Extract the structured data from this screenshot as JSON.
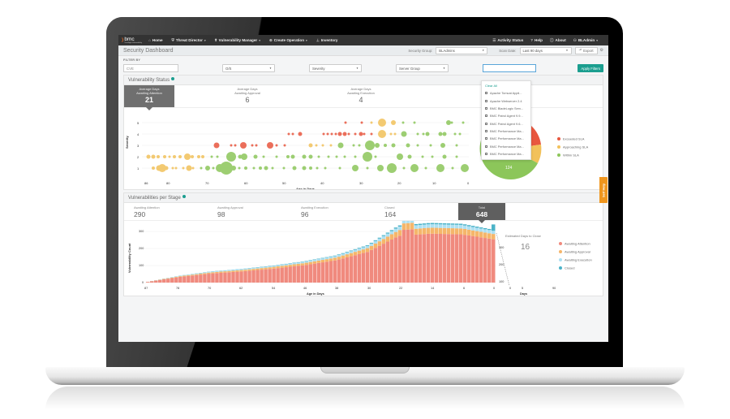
{
  "nav": {
    "logo": "bmc",
    "logo_sub": "TrueSight Vulnerability",
    "items": [
      {
        "label": "Home",
        "icon": "home-icon"
      },
      {
        "label": "Threat Director",
        "icon": "shield-icon",
        "dropdown": true
      },
      {
        "label": "Vulnerability Manager",
        "icon": "bug-icon",
        "dropdown": true
      },
      {
        "label": "Create Operation",
        "icon": "plus-circle-icon",
        "dropdown": true
      },
      {
        "label": "Inventory",
        "icon": "inventory-icon"
      }
    ],
    "right": [
      {
        "label": "Activity Status",
        "icon": "list-icon"
      },
      {
        "label": "Help",
        "icon": "help-icon"
      },
      {
        "label": "About",
        "icon": "info-icon"
      },
      {
        "label": "BLAdmin",
        "icon": "user-icon",
        "dropdown": true
      }
    ]
  },
  "header": {
    "title": "Security Dashboard",
    "security_group_label": "Security Group:",
    "security_group_value": "BLAdmins",
    "scan_date_label": "Scan Date:",
    "scan_date_value": "Last 90 days",
    "export_label": "Export"
  },
  "filters": {
    "label": "FILTER BY",
    "cve_placeholder": "CVE",
    "os_label": "O/S",
    "severity_label": "Severity",
    "server_group_label": "Server Group",
    "search_value": "",
    "apply_label": "Apply Filters",
    "dropdown": {
      "clear_all": "Clear All",
      "items": [
        "Apache Tomcat Appli...",
        "Apache Webserver 2.4",
        "BMC BladeLogic Serv...",
        "BMC Patrol Agent 9.9...",
        "BMC Patrol Agent 9.6...",
        "BMC Performance Ma...",
        "BMC Performance Ma...",
        "BMC Performance Ma...",
        "BMC Performance Ma..."
      ]
    }
  },
  "vuln_status": {
    "title": "Vulnerability Status",
    "stats": [
      {
        "l1": "Average Days",
        "l2": "Awaiting Attention",
        "value": "21",
        "active": true
      },
      {
        "l1": "Average Days",
        "l2": "Awaiting Approval",
        "value": "6"
      },
      {
        "l1": "Average Days",
        "l2": "Awaiting Execution",
        "value": "4"
      }
    ],
    "pie_label": "124",
    "legend": [
      {
        "label": "Exceeded SLA",
        "color": "#e8573f"
      },
      {
        "label": "Approaching SLA",
        "color": "#f2c15a"
      },
      {
        "label": "Within SLA",
        "color": "#8cc65a"
      }
    ]
  },
  "vuln_stage": {
    "title": "Vulnerabilities per Stage",
    "stats": [
      {
        "label": "Awaiting Attention",
        "value": "290"
      },
      {
        "label": "Awaiting Approval",
        "value": "98"
      },
      {
        "label": "Awaiting Execution",
        "value": "96"
      },
      {
        "label": "Closed",
        "value": "164"
      },
      {
        "label": "Total",
        "value": "648",
        "active": true
      }
    ],
    "est_label": "Estimated Days to Close",
    "est_value": "16",
    "legend": [
      {
        "label": "Awaiting Attention",
        "color": "#f08a7e"
      },
      {
        "label": "Awaiting Approval",
        "color": "#f5b66a"
      },
      {
        "label": "Awaiting Execution",
        "color": "#aee0f2"
      },
      {
        "label": "Closed",
        "color": "#4bb3c8"
      }
    ]
  },
  "self_help": "Self Help",
  "chart_data": [
    {
      "type": "scatter",
      "title": "Vulnerability Status",
      "xlabel": "Age in Days",
      "ylabel": "Severity",
      "x_ticks": [
        "86",
        "80",
        "70",
        "60",
        "50",
        "40",
        "30",
        "20",
        "10",
        "0"
      ],
      "y_ticks": [
        "1",
        "2",
        "3",
        "4",
        "5"
      ],
      "series": [
        {
          "name": "Exceeded SLA",
          "color": "#e8573f"
        },
        {
          "name": "Approaching SLA",
          "color": "#f2c15a"
        },
        {
          "name": "Within SLA",
          "color": "#8cc65a"
        }
      ]
    },
    {
      "type": "bar",
      "stacked": true,
      "xlabel": "Age in Days",
      "ylabel": "Vulnerability Count",
      "x_ticks": [
        "87",
        "78",
        "70",
        "62",
        "54",
        "46",
        "38",
        "30",
        "22",
        "14",
        "6",
        "0"
      ],
      "y_ticks": [
        "0",
        "100",
        "200",
        "300"
      ],
      "series_names": [
        "Awaiting Attention",
        "Awaiting Approval",
        "Awaiting Execution",
        "Closed"
      ],
      "approx_totals": [
        5,
        40,
        65,
        80,
        100,
        125,
        160,
        220,
        335,
        350,
        345,
        310
      ],
      "forecast": {
        "xlabel": "Days",
        "x_ticks": [
          "0",
          "5",
          "90"
        ],
        "y_ticks": [
          "100",
          "200",
          "300"
        ]
      }
    }
  ]
}
